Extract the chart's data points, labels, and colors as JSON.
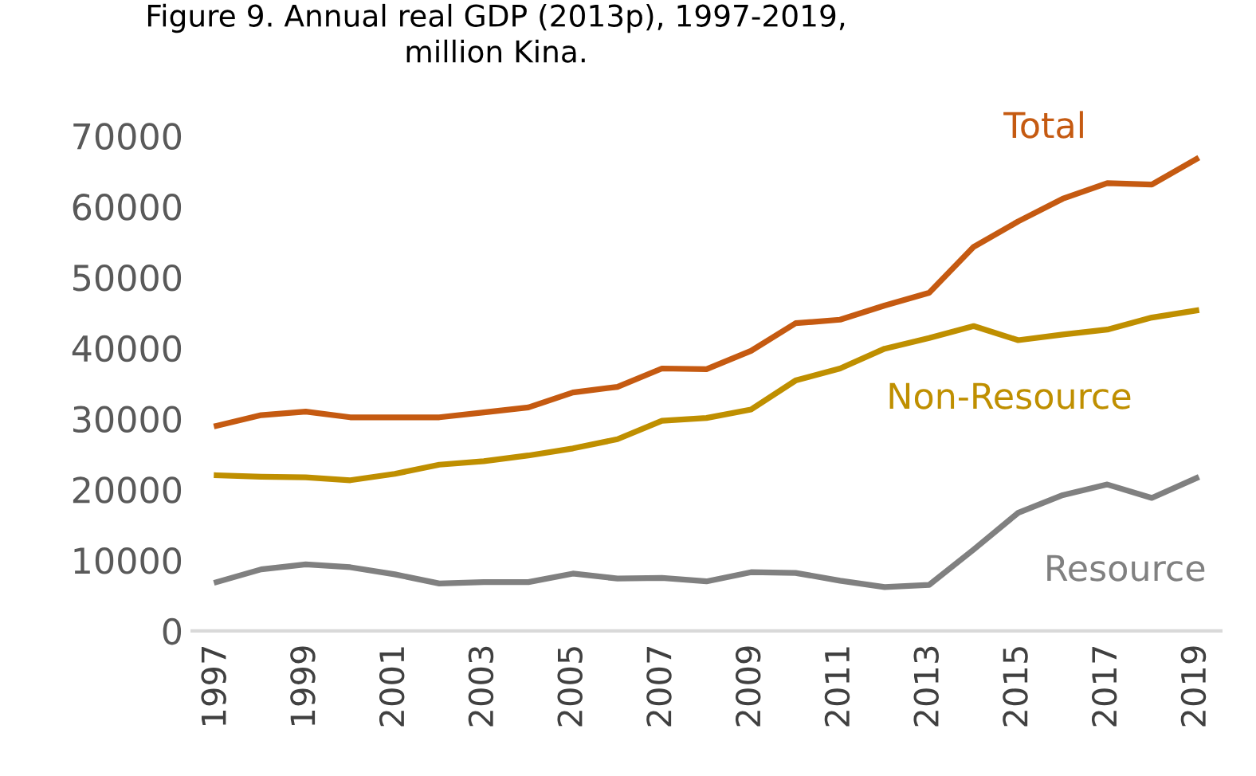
{
  "chart_data": {
    "type": "line",
    "title": "Figure 9. Annual real GDP (2013p), 1997-2019,\nmillion Kina.",
    "categories": [
      "1997",
      null,
      "1999",
      null,
      "2001",
      null,
      "2003",
      null,
      "2005",
      null,
      "2007",
      null,
      "2009",
      null,
      "2011",
      null,
      "2013",
      null,
      "2015",
      null,
      "2017",
      null,
      "2019"
    ],
    "series": [
      {
        "name": "Total",
        "color": "#c55a11",
        "values": [
          29000,
          30500,
          31000,
          30200,
          30200,
          30200,
          30900,
          31600,
          33700,
          34500,
          37100,
          37000,
          39600,
          43500,
          44000,
          46000,
          47800,
          54300,
          57900,
          61100,
          63300,
          63100,
          66700
        ]
      },
      {
        "name": "Non-Resource",
        "color": "#bf8f00",
        "values": [
          22000,
          21800,
          21700,
          21300,
          22200,
          23500,
          24000,
          24800,
          25800,
          27100,
          29700,
          30100,
          31300,
          35400,
          37100,
          39900,
          41400,
          43100,
          41100,
          41900,
          42600,
          44300,
          45300
        ]
      },
      {
        "name": "Resource",
        "color": "#808080",
        "values": [
          6900,
          8700,
          9400,
          9000,
          8000,
          6700,
          6900,
          6900,
          8100,
          7400,
          7500,
          7000,
          8300,
          8200,
          7100,
          6200,
          6500,
          11500,
          16700,
          19200,
          20700,
          18800,
          21600
        ]
      }
    ],
    "ylim": [
      0,
      70000
    ],
    "yticks": [
      0,
      10000,
      20000,
      30000,
      40000,
      50000,
      60000,
      70000
    ],
    "grid": false,
    "legend": false,
    "marker": "none",
    "line_style": "solid"
  }
}
